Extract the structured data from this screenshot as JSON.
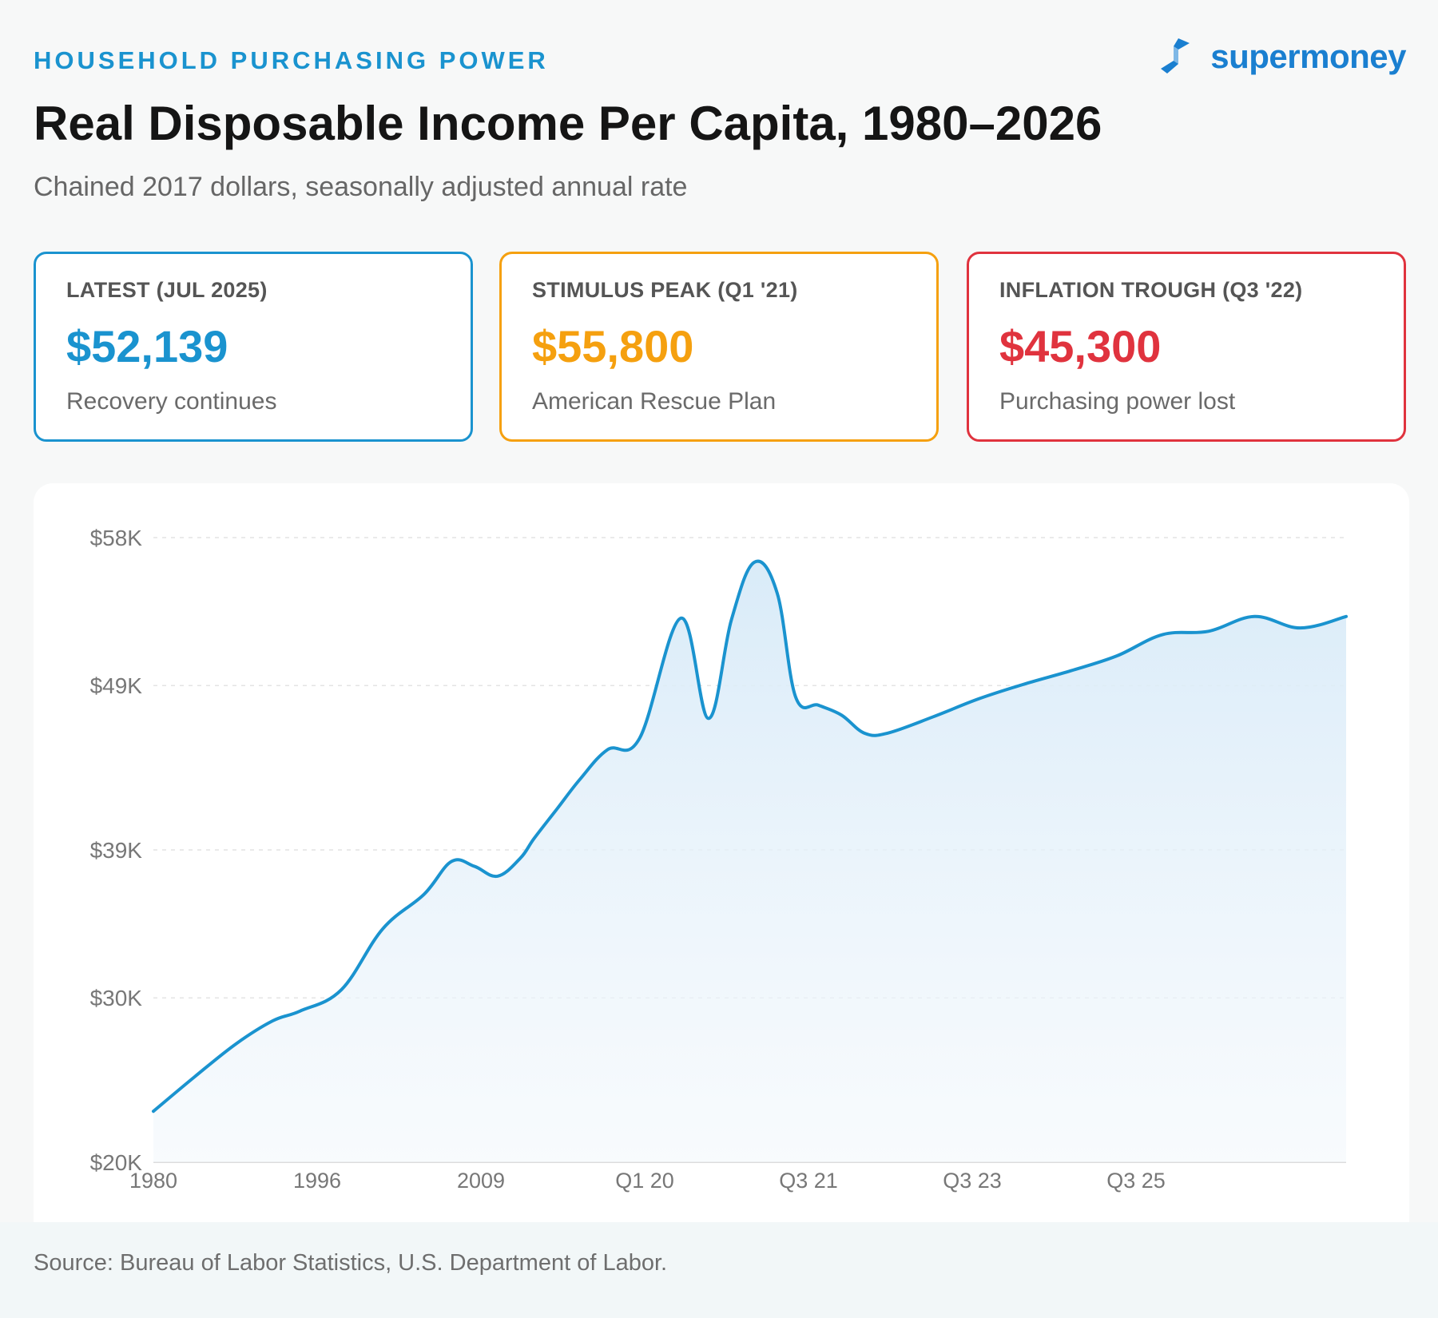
{
  "header": {
    "eyebrow": "HOUSEHOLD PURCHASING POWER",
    "title": "Real Disposable Income Per Capita, 1980–2026",
    "subtitle": "Chained 2017 dollars, seasonally adjusted annual rate"
  },
  "brand": {
    "name": "supermoney",
    "color": "#1a7fd0"
  },
  "cards": [
    {
      "label": "LATEST (JUL 2025)",
      "value": "$52,139",
      "note": "Recovery continues",
      "color": "#1a93cf"
    },
    {
      "label": "STIMULUS PEAK (Q1 '21)",
      "value": "$55,800",
      "note": "American Rescue Plan",
      "color": "#f5a00f"
    },
    {
      "label": "INFLATION TROUGH (Q3 '22)",
      "value": "$45,300",
      "note": "Purchasing power lost",
      "color": "#e0333e"
    }
  ],
  "chart_data": {
    "type": "area",
    "title": "",
    "xlabel": "",
    "ylabel": "",
    "ylim": [
      20000,
      58000
    ],
    "y_ticks": [
      {
        "value": 20000,
        "label": "$20K"
      },
      {
        "value": 30000,
        "label": "$30K"
      },
      {
        "value": 39000,
        "label": "$39K"
      },
      {
        "value": 49000,
        "label": "$49K"
      },
      {
        "value": 58000,
        "label": "$58K"
      }
    ],
    "x_ticks": [
      "1980",
      "1996",
      "2009",
      "Q1 20",
      "Q3 21",
      "Q3 23",
      "Q3 25"
    ],
    "x_range": [
      0,
      26
    ],
    "grid": true,
    "line_color": "#1a93cf",
    "series": [
      {
        "x": [
          0,
          0.9,
          1.8,
          2.6,
          3.2,
          4.1,
          5.0,
          5.9,
          6.5,
          7.0,
          7.5,
          8.0,
          8.3,
          8.8,
          9.3,
          9.9,
          10.6,
          11.5,
          12.1,
          12.6,
          13.1,
          13.6,
          14.0,
          14.5,
          15.0,
          15.5,
          16.0,
          17.0,
          18.0,
          19.0,
          20.0,
          21.0,
          22.0,
          23.0,
          24.0,
          25.0,
          26.0
        ],
        "y": [
          23100,
          25200,
          27200,
          28600,
          29200,
          30500,
          34200,
          36300,
          38300,
          38000,
          37400,
          38500,
          39700,
          41500,
          43300,
          45100,
          45800,
          53100,
          47000,
          53000,
          56500,
          54600,
          48300,
          47800,
          47200,
          46100,
          46100,
          47100,
          48200,
          49100,
          49900,
          50800,
          52100,
          52300,
          53200,
          52500,
          53200
        ]
      }
    ]
  },
  "source": "Source: Bureau of Labor Statistics, U.S. Department of Labor."
}
